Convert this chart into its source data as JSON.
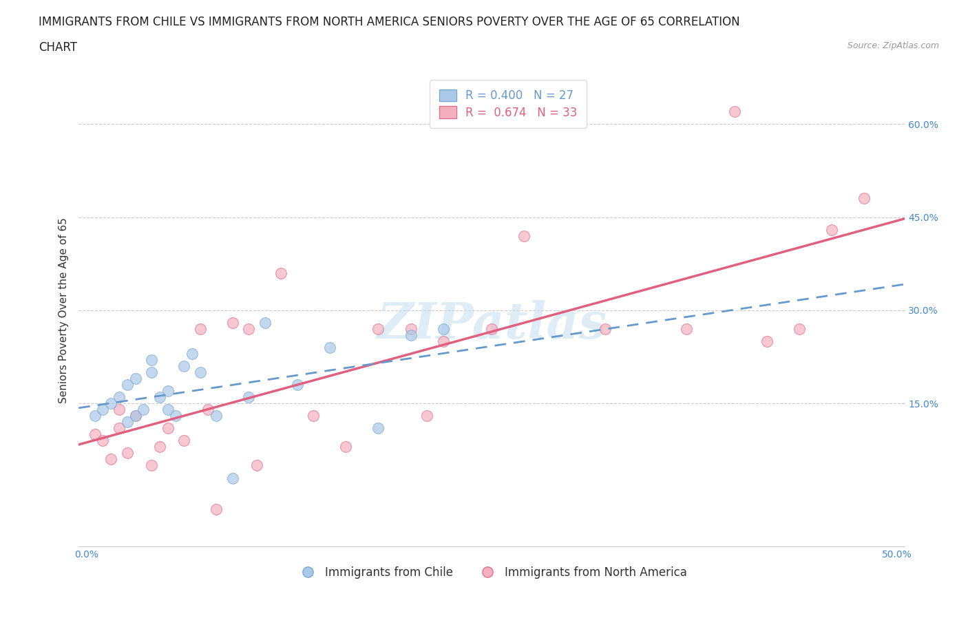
{
  "title_line1": "IMMIGRANTS FROM CHILE VS IMMIGRANTS FROM NORTH AMERICA SENIORS POVERTY OVER THE AGE OF 65 CORRELATION",
  "title_line2": "CHART",
  "source": "Source: ZipAtlas.com",
  "ylabel": "Seniors Poverty Over the Age of 65",
  "watermark": "ZIPatlas",
  "xlim": [
    -0.005,
    0.505
  ],
  "ylim": [
    -0.08,
    0.68
  ],
  "xticks": [
    0.0,
    0.1,
    0.2,
    0.3,
    0.4,
    0.5
  ],
  "xtick_labels": [
    "0.0%",
    "",
    "",
    "",
    "",
    "50.0%"
  ],
  "ytick_positions": [
    0.15,
    0.3,
    0.45,
    0.6
  ],
  "ytick_labels": [
    "15.0%",
    "30.0%",
    "45.0%",
    "60.0%"
  ],
  "grid_color": "#cccccc",
  "background_color": "#ffffff",
  "chile_color": "#aac8e8",
  "chile_edge_color": "#7aaad0",
  "na_color": "#f5b0c0",
  "na_edge_color": "#e07090",
  "trend_chile_color": "#6699cc",
  "trend_na_color": "#e06080",
  "R_chile": 0.4,
  "N_chile": 27,
  "R_na": 0.674,
  "N_na": 33,
  "chile_x": [
    0.005,
    0.01,
    0.015,
    0.02,
    0.025,
    0.025,
    0.03,
    0.03,
    0.035,
    0.04,
    0.04,
    0.045,
    0.05,
    0.05,
    0.055,
    0.06,
    0.065,
    0.07,
    0.08,
    0.09,
    0.1,
    0.11,
    0.13,
    0.15,
    0.18,
    0.2,
    0.22
  ],
  "chile_y": [
    0.13,
    0.14,
    0.15,
    0.16,
    0.12,
    0.18,
    0.13,
    0.19,
    0.14,
    0.2,
    0.22,
    0.16,
    0.14,
    0.17,
    0.13,
    0.21,
    0.23,
    0.2,
    0.13,
    0.03,
    0.16,
    0.28,
    0.18,
    0.24,
    0.11,
    0.26,
    0.27
  ],
  "na_x": [
    0.005,
    0.01,
    0.015,
    0.02,
    0.02,
    0.025,
    0.03,
    0.04,
    0.045,
    0.05,
    0.06,
    0.07,
    0.075,
    0.08,
    0.09,
    0.1,
    0.105,
    0.12,
    0.14,
    0.16,
    0.18,
    0.2,
    0.21,
    0.22,
    0.25,
    0.27,
    0.32,
    0.37,
    0.4,
    0.42,
    0.44,
    0.46,
    0.48
  ],
  "na_y": [
    0.1,
    0.09,
    0.06,
    0.11,
    0.14,
    0.07,
    0.13,
    0.05,
    0.08,
    0.11,
    0.09,
    0.27,
    0.14,
    -0.02,
    0.28,
    0.27,
    0.05,
    0.36,
    0.13,
    0.08,
    0.27,
    0.27,
    0.13,
    0.25,
    0.27,
    0.42,
    0.27,
    0.27,
    0.62,
    0.25,
    0.27,
    0.43,
    0.48
  ],
  "legend_label_chile": "Immigrants from Chile",
  "legend_label_na": "Immigrants from North America",
  "title_fontsize": 12,
  "axis_label_fontsize": 11,
  "tick_fontsize": 10,
  "legend_fontsize": 12,
  "watermark_fontsize": 52,
  "watermark_color": "#c8e0f0",
  "watermark_alpha": 0.6,
  "marker_size": 130,
  "marker_alpha": 0.7
}
